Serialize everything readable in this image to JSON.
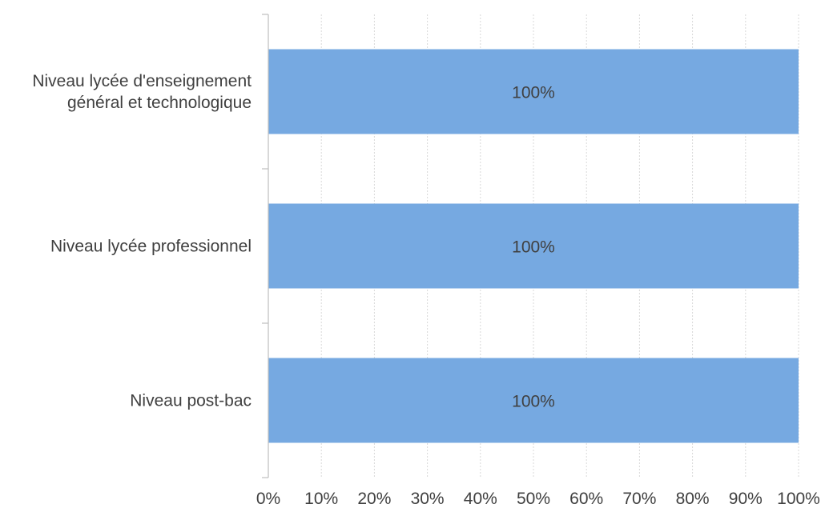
{
  "chart_data": {
    "type": "bar",
    "orientation": "horizontal",
    "categories": [
      [
        "Niveau lycée d'enseignement",
        "général et technologique"
      ],
      [
        "Niveau lycée professionnel"
      ],
      [
        "Niveau post-bac"
      ]
    ],
    "values": [
      100,
      100,
      100
    ],
    "data_labels": [
      "100%",
      "100%",
      "100%"
    ],
    "title": "",
    "xlabel": "",
    "ylabel": "",
    "xlim": [
      0,
      100
    ],
    "x_ticks": [
      0,
      10,
      20,
      30,
      40,
      50,
      60,
      70,
      80,
      90,
      100
    ],
    "x_tick_labels": [
      "0%",
      "10%",
      "20%",
      "30%",
      "40%",
      "50%",
      "60%",
      "70%",
      "80%",
      "90%",
      "100%"
    ],
    "grid": true,
    "legend": "none",
    "bar_color": "#76A9E1"
  }
}
